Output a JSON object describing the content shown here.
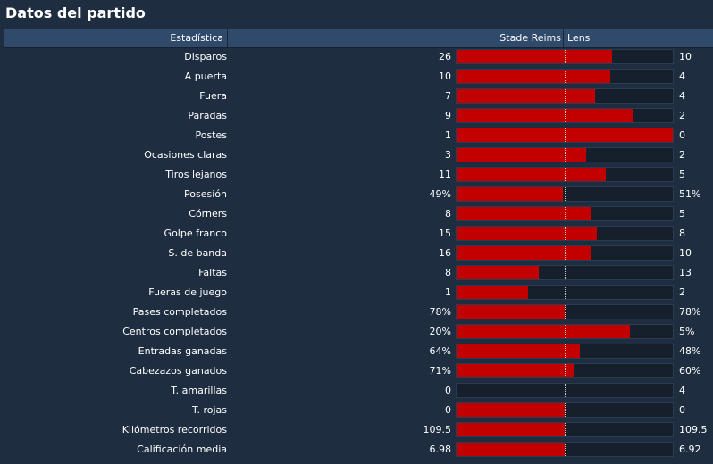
{
  "title": "Datos del partido",
  "header": {
    "stat_label": "Estadística",
    "home_team": "Stade Reims",
    "away_team": "Lens"
  },
  "colors": {
    "background": "#1e2d40",
    "header": "#2f4a6b",
    "bar_fill": "#c20000",
    "bar_track": "#16202c"
  },
  "stats": [
    {
      "label": "Disparos",
      "home": "26",
      "away": "10",
      "home_share": 0.72
    },
    {
      "label": "A puerta",
      "home": "10",
      "away": "4",
      "home_share": 0.71
    },
    {
      "label": "Fuera",
      "home": "7",
      "away": "4",
      "home_share": 0.64
    },
    {
      "label": "Paradas",
      "home": "9",
      "away": "2",
      "home_share": 0.82
    },
    {
      "label": "Postes",
      "home": "1",
      "away": "0",
      "home_share": 1.0
    },
    {
      "label": "Ocasiones claras",
      "home": "3",
      "away": "2",
      "home_share": 0.6
    },
    {
      "label": "Tiros lejanos",
      "home": "11",
      "away": "5",
      "home_share": 0.69
    },
    {
      "label": "Posesión",
      "home": "49%",
      "away": "51%",
      "home_share": 0.49
    },
    {
      "label": "Córners",
      "home": "8",
      "away": "5",
      "home_share": 0.62
    },
    {
      "label": "Golpe franco",
      "home": "15",
      "away": "8",
      "home_share": 0.65
    },
    {
      "label": "S. de banda",
      "home": "16",
      "away": "10",
      "home_share": 0.62
    },
    {
      "label": "Faltas",
      "home": "8",
      "away": "13",
      "home_share": 0.38
    },
    {
      "label": "Fueras de juego",
      "home": "1",
      "away": "2",
      "home_share": 0.33
    },
    {
      "label": "Pases completados",
      "home": "78%",
      "away": "78%",
      "home_share": 0.5
    },
    {
      "label": "Centros completados",
      "home": "20%",
      "away": "5%",
      "home_share": 0.8
    },
    {
      "label": "Entradas ganadas",
      "home": "64%",
      "away": "48%",
      "home_share": 0.57
    },
    {
      "label": "Cabezazos ganados",
      "home": "71%",
      "away": "60%",
      "home_share": 0.54
    },
    {
      "label": "T. amarillas",
      "home": "0",
      "away": "4",
      "home_share": 0.0
    },
    {
      "label": "T. rojas",
      "home": "0",
      "away": "0",
      "home_share": 0.5
    },
    {
      "label": "Kilómetros recorridos",
      "home": "109.5",
      "away": "109.5",
      "home_share": 0.5
    },
    {
      "label": "Calificación media",
      "home": "6.98",
      "away": "6.92",
      "home_share": 0.5
    }
  ]
}
